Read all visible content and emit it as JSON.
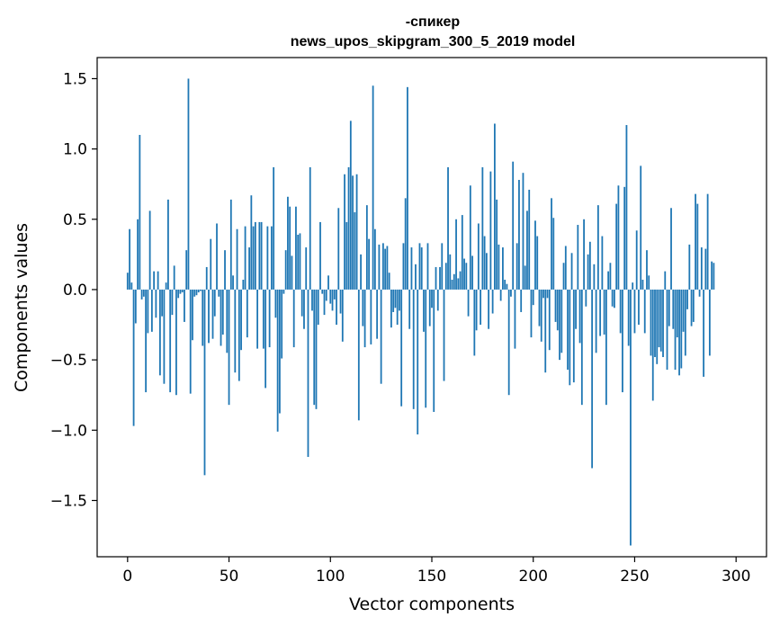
{
  "chart_data": {
    "type": "bar",
    "title_line1": "-спикер",
    "title_line2": "news_upos_skipgram_300_5_2019 model",
    "xlabel": "Vector components",
    "ylabel": "Components values",
    "xlim": [
      -15,
      315
    ],
    "ylim": [
      -1.9,
      1.65
    ],
    "xticks": [
      0,
      50,
      100,
      150,
      200,
      250,
      300
    ],
    "yticks": [
      -1.5,
      -1.0,
      -0.5,
      0.0,
      0.5,
      1.0,
      1.5
    ],
    "ytick_labels": [
      "−1.5",
      "−1.0",
      "−0.5",
      "0.0",
      "0.5",
      "1.0",
      "1.5"
    ],
    "bar_color": "#1f77b4",
    "grid": false,
    "values": [
      0.12,
      0.43,
      0.05,
      -0.97,
      -0.24,
      0.5,
      1.1,
      -0.07,
      -0.05,
      -0.73,
      -0.31,
      0.56,
      -0.3,
      0.13,
      -0.2,
      0.13,
      -0.61,
      -0.19,
      -0.67,
      0.05,
      0.64,
      -0.73,
      -0.18,
      0.17,
      -0.75,
      -0.06,
      -0.03,
      -0.02,
      -0.23,
      0.28,
      1.5,
      -0.74,
      -0.36,
      -0.05,
      -0.04,
      -0.02,
      -0.01,
      -0.4,
      -1.32,
      0.16,
      -0.38,
      0.36,
      -0.35,
      -0.19,
      0.47,
      -0.05,
      -0.4,
      -0.32,
      0.28,
      -0.45,
      -0.82,
      0.64,
      0.1,
      -0.59,
      0.43,
      -0.65,
      -0.43,
      0.07,
      0.45,
      -0.34,
      0.3,
      0.67,
      0.45,
      0.48,
      -0.42,
      0.48,
      0.48,
      -0.42,
      -0.7,
      0.45,
      -0.41,
      0.45,
      0.87,
      -0.2,
      -1.01,
      -0.88,
      -0.49,
      -0.03,
      0.28,
      0.66,
      0.59,
      0.24,
      -0.41,
      0.59,
      0.39,
      0.4,
      -0.19,
      -0.28,
      0.3,
      -1.19,
      0.87,
      -0.15,
      -0.82,
      -0.85,
      -0.25,
      0.48,
      -0.03,
      -0.18,
      -0.08,
      0.1,
      -0.1,
      -0.15,
      -0.07,
      -0.25,
      0.58,
      -0.17,
      -0.37,
      0.82,
      0.48,
      0.87,
      1.2,
      0.81,
      0.55,
      0.82,
      -0.93,
      0.25,
      -0.26,
      -0.41,
      0.6,
      0.36,
      -0.39,
      1.45,
      0.43,
      -0.35,
      0.32,
      -0.67,
      0.33,
      0.29,
      0.31,
      0.12,
      -0.27,
      -0.16,
      -0.13,
      -0.25,
      -0.15,
      -0.83,
      0.33,
      0.65,
      1.44,
      -0.28,
      0.3,
      -0.85,
      0.18,
      -1.03,
      0.33,
      0.3,
      -0.3,
      -0.84,
      0.33,
      -0.26,
      -0.13,
      -0.87,
      0.16,
      -0.15,
      0.16,
      0.33,
      -0.65,
      0.19,
      0.87,
      0.25,
      0.07,
      0.11,
      0.5,
      0.08,
      0.13,
      0.53,
      0.22,
      0.19,
      -0.19,
      0.74,
      0.24,
      -0.47,
      -0.29,
      0.47,
      -0.25,
      0.87,
      0.38,
      0.26,
      -0.28,
      0.84,
      -0.17,
      1.18,
      0.64,
      0.32,
      -0.08,
      0.3,
      0.07,
      0.04,
      -0.75,
      -0.05,
      0.91,
      -0.42,
      0.33,
      0.78,
      -0.16,
      0.83,
      0.17,
      0.56,
      0.71,
      -0.34,
      -0.11,
      0.49,
      0.38,
      -0.26,
      -0.37,
      -0.06,
      -0.59,
      -0.06,
      -0.43,
      0.65,
      0.51,
      -0.23,
      -0.29,
      -0.5,
      -0.45,
      0.19,
      0.31,
      -0.57,
      -0.68,
      0.26,
      -0.66,
      -0.28,
      0.46,
      -0.38,
      -0.82,
      0.5,
      -0.12,
      0.25,
      0.34,
      -1.27,
      0.18,
      -0.45,
      0.6,
      -0.33,
      0.38,
      -0.32,
      -0.82,
      0.13,
      0.19,
      -0.12,
      -0.13,
      0.61,
      0.74,
      -0.31,
      -0.73,
      0.73,
      1.17,
      -0.4,
      -1.82,
      0.05,
      -0.31,
      0.42,
      -0.25,
      0.88,
      0.07,
      -0.31,
      0.28,
      0.1,
      -0.47,
      -0.79,
      -0.48,
      -0.53,
      -0.41,
      -0.44,
      -0.48,
      0.13,
      -0.57,
      -0.26,
      0.58,
      -0.28,
      -0.57,
      -0.34,
      -0.61,
      -0.56,
      -0.3,
      -0.47,
      -0.14,
      0.32,
      -0.26,
      -0.23,
      0.68,
      0.61,
      -0.05,
      0.3,
      -0.62,
      0.29,
      0.68,
      -0.47,
      0.2,
      0.19
    ]
  }
}
